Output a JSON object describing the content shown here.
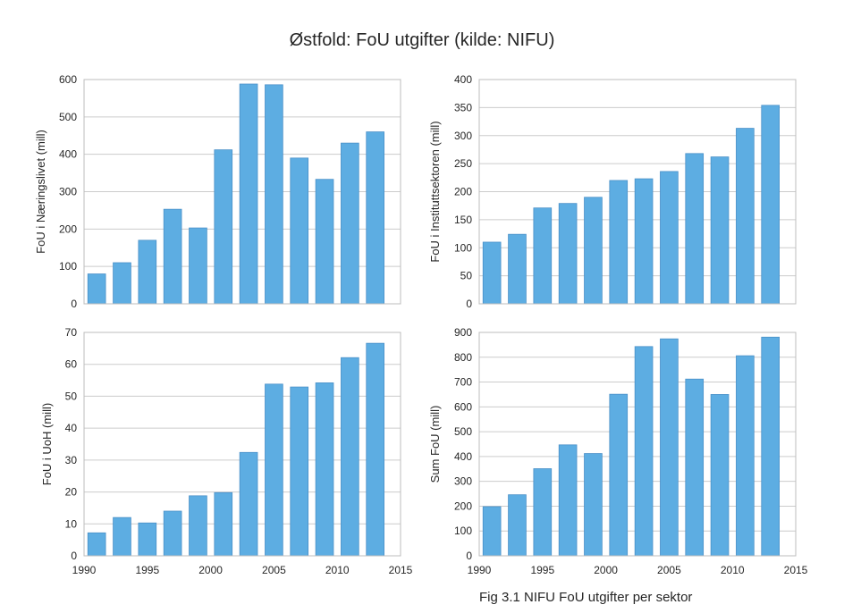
{
  "figure": {
    "title": "Østfold: FoU utgifter (kilde: NIFU)",
    "caption": "Fig 3.1 NIFU FoU utgifter per sektor"
  },
  "colors": {
    "bar_fill": "#5dade2",
    "bar_edge": "#4a90c8",
    "grid": "#cccccc",
    "frame": "#bdbdbd"
  },
  "chart_data": [
    {
      "type": "bar",
      "position": "top-left",
      "ylabel": "FoU i Næringslivet (mill)",
      "xlabel": "",
      "x": [
        1991,
        1993,
        1995,
        1997,
        1999,
        2001,
        2003,
        2005,
        2007,
        2009,
        2011,
        2013
      ],
      "values": [
        80,
        110,
        170,
        253,
        203,
        412,
        588,
        586,
        390,
        333,
        430,
        460
      ],
      "xlim": [
        1990,
        2015
      ],
      "ylim": [
        0,
        600
      ],
      "yticks": [
        0,
        100,
        200,
        300,
        400,
        500,
        600
      ],
      "xticks": [],
      "grid": true
    },
    {
      "type": "bar",
      "position": "top-right",
      "ylabel": "FoU i Instituttsektoren (mill)",
      "xlabel": "",
      "x": [
        1991,
        1993,
        1995,
        1997,
        1999,
        2001,
        2003,
        2005,
        2007,
        2009,
        2011,
        2013
      ],
      "values": [
        110,
        124,
        171,
        179,
        190,
        220,
        223,
        236,
        268,
        262,
        313,
        354
      ],
      "xlim": [
        1990,
        2015
      ],
      "ylim": [
        0,
        400
      ],
      "yticks": [
        0,
        50,
        100,
        150,
        200,
        250,
        300,
        350,
        400
      ],
      "xticks": [],
      "grid": true
    },
    {
      "type": "bar",
      "position": "bottom-left",
      "ylabel": "FoU i UoH (mill)",
      "xlabel": "",
      "x": [
        1991,
        1993,
        1995,
        1997,
        1999,
        2001,
        2003,
        2005,
        2007,
        2009,
        2011,
        2013
      ],
      "values": [
        7.2,
        12.0,
        10.3,
        14.0,
        18.8,
        19.8,
        32.4,
        53.8,
        52.9,
        54.2,
        62.1,
        66.6
      ],
      "xlim": [
        1990,
        2015
      ],
      "ylim": [
        0,
        70
      ],
      "yticks": [
        0,
        10,
        20,
        30,
        40,
        50,
        60,
        70
      ],
      "xticks": [
        1990,
        1995,
        2000,
        2005,
        2010,
        2015
      ],
      "grid": true
    },
    {
      "type": "bar",
      "position": "bottom-right",
      "ylabel": "Sum FoU (mill)",
      "xlabel": "",
      "x": [
        1991,
        1993,
        1995,
        1997,
        1999,
        2001,
        2003,
        2005,
        2007,
        2009,
        2011,
        2013
      ],
      "values": [
        198,
        246,
        351,
        447,
        412,
        651,
        843,
        874,
        712,
        650,
        806,
        881
      ],
      "xlim": [
        1990,
        2015
      ],
      "ylim": [
        0,
        900
      ],
      "yticks": [
        0,
        100,
        200,
        300,
        400,
        500,
        600,
        700,
        800,
        900
      ],
      "xticks": [
        1990,
        1995,
        2000,
        2005,
        2010,
        2015
      ],
      "grid": true
    }
  ]
}
